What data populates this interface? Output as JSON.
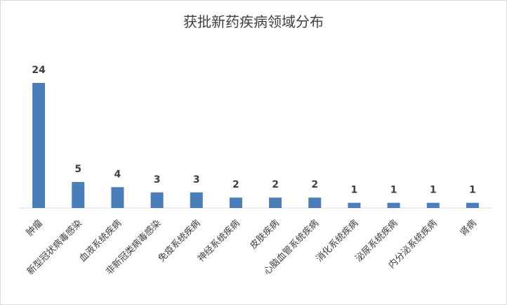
{
  "chart_data": {
    "type": "bar",
    "title": "获批新药疾病领域分布",
    "categories": [
      "肿瘤",
      "新型冠状病毒感染",
      "血液系统疾病",
      "非新冠类病毒感染",
      "免疫系统疾病",
      "神经系统疾病",
      "皮肤疾病",
      "心脑血管系统疾病",
      "消化系统疾病",
      "泌尿系统疾病",
      "内分泌系统疾病",
      "肾病"
    ],
    "values": [
      24,
      5,
      4,
      3,
      3,
      2,
      2,
      2,
      1,
      1,
      1,
      1
    ],
    "ylim": [
      0,
      24
    ],
    "grid": false,
    "legend": "none",
    "bar_color": "#4a7ebb",
    "axis_color": "#d9d9d9"
  }
}
